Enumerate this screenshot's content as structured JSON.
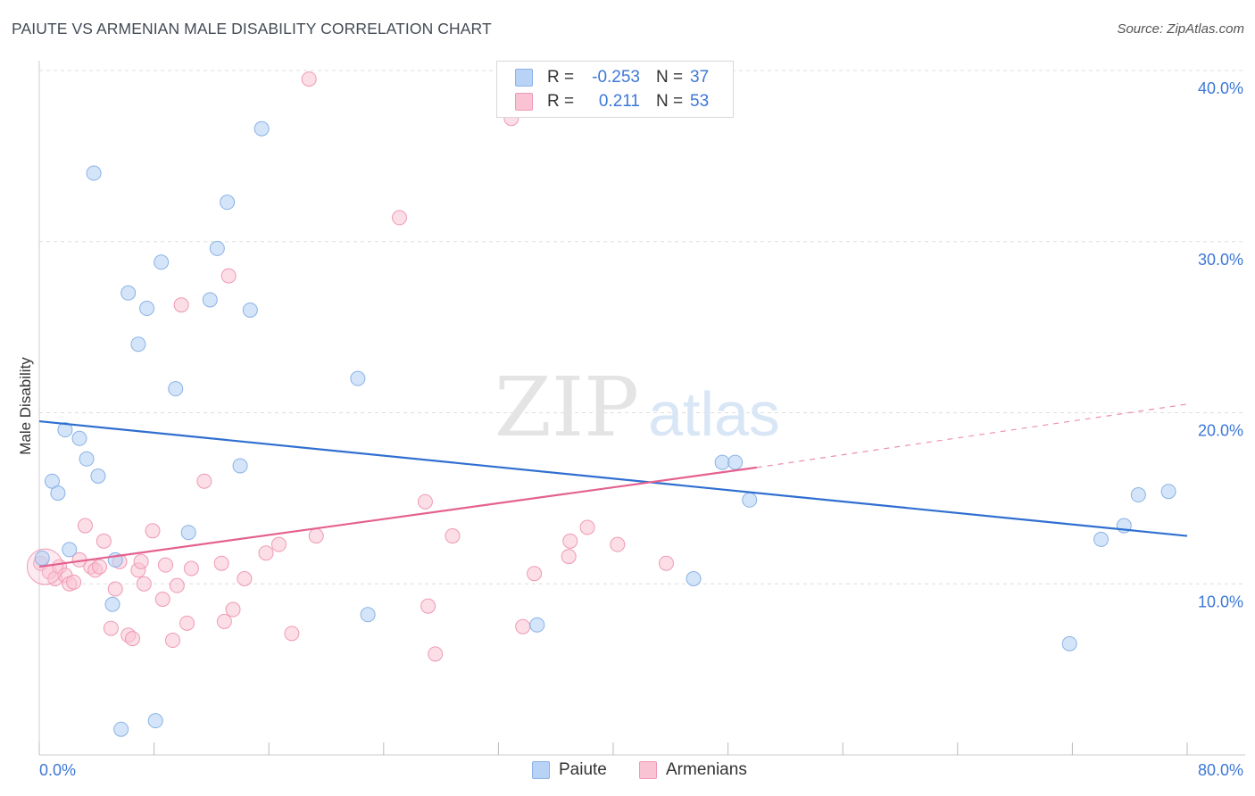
{
  "header": {
    "title": "PAIUTE VS ARMENIAN MALE DISABILITY CORRELATION CHART",
    "source": "Source: ZipAtlas.com"
  },
  "watermark": {
    "zip": "ZIP",
    "atlas": "atlas"
  },
  "legend_top": {
    "rows": [
      {
        "r_label": "R =",
        "r_value": "-0.253",
        "n_label": "N =",
        "n_value": "37"
      },
      {
        "r_label": "R =",
        "r_value": "0.211",
        "n_label": "N =",
        "n_value": "53"
      }
    ]
  },
  "legend_bottom": {
    "items": [
      "Paiute",
      "Armenians"
    ]
  },
  "colors": {
    "paiute_fill": "#b8d3f5",
    "paiute_stroke": "#8ab2e6",
    "paiute_line": "#2f6fd0",
    "armenian_fill": "#f9c3d3",
    "armenian_stroke": "#ee9ab4",
    "armenian_line": "#e4618f",
    "tick_label": "#3d78d8",
    "grid": "#dddddd"
  },
  "chart_data": {
    "type": "scatter",
    "title": "PAIUTE VS ARMENIAN MALE DISABILITY CORRELATION CHART",
    "xlabel": "",
    "ylabel": "Male Disability",
    "xlim": [
      0,
      80
    ],
    "ylim": [
      0,
      42
    ],
    "x_tick_labels": [
      "0.0%",
      "80.0%"
    ],
    "y_ticks": [
      10,
      20,
      30,
      40
    ],
    "y_tick_labels": [
      "10.0%",
      "20.0%",
      "30.0%",
      "40.0%"
    ],
    "grid": "horizontal dashed",
    "legend_position": "top-center",
    "series": [
      {
        "name": "Paiute",
        "r": -0.253,
        "n": 37,
        "trend": {
          "x": [
            0,
            80
          ],
          "y": [
            19.5,
            12.8
          ]
        },
        "points": [
          [
            0.2,
            11.5
          ],
          [
            0.9,
            16.0
          ],
          [
            1.3,
            15.3
          ],
          [
            1.8,
            19.0
          ],
          [
            2.1,
            12.0
          ],
          [
            2.8,
            18.5
          ],
          [
            3.3,
            17.3
          ],
          [
            3.8,
            34.0
          ],
          [
            4.1,
            16.3
          ],
          [
            5.1,
            8.8
          ],
          [
            5.3,
            11.4
          ],
          [
            5.7,
            1.5
          ],
          [
            6.2,
            27.0
          ],
          [
            6.9,
            24.0
          ],
          [
            7.5,
            26.1
          ],
          [
            8.1,
            2.0
          ],
          [
            8.5,
            28.8
          ],
          [
            9.5,
            21.4
          ],
          [
            10.4,
            13.0
          ],
          [
            11.9,
            26.6
          ],
          [
            12.4,
            29.6
          ],
          [
            13.1,
            32.3
          ],
          [
            14.0,
            16.9
          ],
          [
            14.7,
            26.0
          ],
          [
            15.5,
            36.6
          ],
          [
            22.2,
            22.0
          ],
          [
            22.9,
            8.2
          ],
          [
            34.7,
            7.6
          ],
          [
            45.6,
            10.3
          ],
          [
            47.6,
            17.1
          ],
          [
            48.5,
            17.1
          ],
          [
            49.5,
            14.9
          ],
          [
            71.8,
            6.5
          ],
          [
            74.0,
            12.6
          ],
          [
            75.6,
            13.4
          ],
          [
            76.6,
            15.2
          ],
          [
            78.7,
            15.4
          ]
        ]
      },
      {
        "name": "Armenians",
        "r": 0.211,
        "n": 53,
        "trend": {
          "x": [
            0,
            50
          ],
          "y": [
            11.0,
            16.8
          ]
        },
        "trend_dashed": {
          "x": [
            50,
            80
          ],
          "y": [
            16.8,
            20.5
          ]
        },
        "points": [
          [
            0.1,
            11.2
          ],
          [
            0.7,
            10.7
          ],
          [
            1.1,
            10.3
          ],
          [
            1.4,
            11.0
          ],
          [
            1.8,
            10.5
          ],
          [
            2.1,
            10.0
          ],
          [
            2.4,
            10.1
          ],
          [
            2.8,
            11.4
          ],
          [
            3.2,
            13.4
          ],
          [
            3.6,
            11.0
          ],
          [
            3.9,
            10.8
          ],
          [
            4.2,
            11.0
          ],
          [
            4.5,
            12.5
          ],
          [
            5.0,
            7.4
          ],
          [
            5.3,
            9.7
          ],
          [
            5.6,
            11.3
          ],
          [
            6.2,
            7.0
          ],
          [
            6.5,
            6.8
          ],
          [
            6.9,
            10.8
          ],
          [
            7.1,
            11.3
          ],
          [
            7.3,
            10.0
          ],
          [
            7.9,
            13.1
          ],
          [
            8.6,
            9.1
          ],
          [
            8.8,
            11.1
          ],
          [
            9.3,
            6.7
          ],
          [
            9.6,
            9.9
          ],
          [
            9.9,
            26.3
          ],
          [
            10.3,
            7.7
          ],
          [
            10.6,
            10.9
          ],
          [
            11.5,
            16.0
          ],
          [
            12.7,
            11.2
          ],
          [
            12.9,
            7.8
          ],
          [
            13.2,
            28.0
          ],
          [
            13.5,
            8.5
          ],
          [
            14.3,
            10.3
          ],
          [
            15.8,
            11.8
          ],
          [
            16.7,
            12.3
          ],
          [
            17.6,
            7.1
          ],
          [
            18.8,
            39.5
          ],
          [
            19.3,
            12.8
          ],
          [
            25.1,
            31.4
          ],
          [
            26.9,
            14.8
          ],
          [
            27.1,
            8.7
          ],
          [
            27.6,
            5.9
          ],
          [
            28.8,
            12.8
          ],
          [
            32.9,
            37.2
          ],
          [
            33.7,
            7.5
          ],
          [
            34.5,
            10.6
          ],
          [
            36.9,
            11.6
          ],
          [
            37.0,
            12.5
          ],
          [
            38.2,
            13.3
          ],
          [
            40.3,
            12.3
          ],
          [
            43.7,
            11.2
          ]
        ]
      }
    ]
  }
}
